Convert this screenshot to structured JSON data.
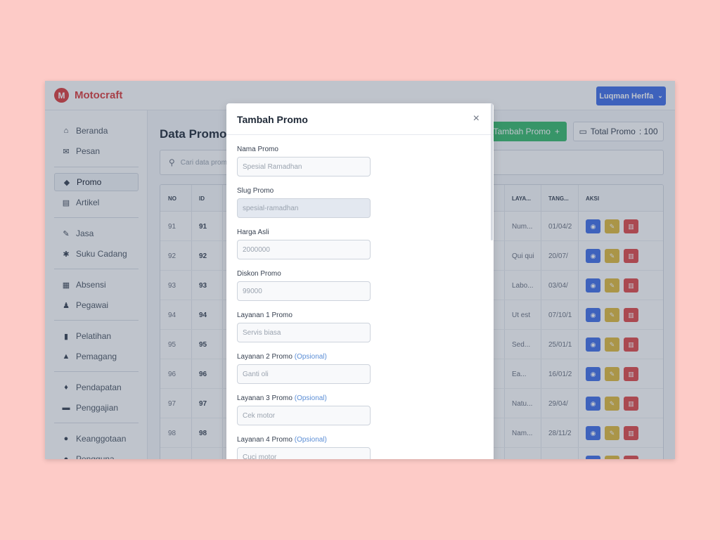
{
  "header": {
    "brand_logo": "M",
    "brand_name": "Motocraft",
    "user_name": "Luqman Herlfa",
    "chevron": "⌄",
    "colors": {
      "brand": "#dc3b3b",
      "user_button": "#3f6ee8"
    }
  },
  "sidebar": {
    "items": [
      {
        "label": "Beranda",
        "icon": "home-icon",
        "glyph": "⌂"
      },
      {
        "label": "Pesan",
        "icon": "envelope-icon",
        "glyph": "✉"
      },
      {
        "label": "Promo",
        "icon": "tags-icon",
        "glyph": "◆",
        "active": true
      },
      {
        "label": "Artikel",
        "icon": "newspaper-icon",
        "glyph": "▤"
      },
      {
        "label": "Jasa",
        "icon": "wrench-icon",
        "glyph": "✎"
      },
      {
        "label": "Suku Cadang",
        "icon": "gear-icon",
        "glyph": "✱"
      },
      {
        "label": "Absensi",
        "icon": "calendar-icon",
        "glyph": "▦"
      },
      {
        "label": "Pegawai",
        "icon": "user-tie-icon",
        "glyph": "♟"
      },
      {
        "label": "Pelatihan",
        "icon": "book-icon",
        "glyph": "▮"
      },
      {
        "label": "Pemagang",
        "icon": "graduation-cap-icon",
        "glyph": "▲"
      },
      {
        "label": "Pendapatan",
        "icon": "money-bag-icon",
        "glyph": "♦"
      },
      {
        "label": "Penggajian",
        "icon": "wallet-icon",
        "glyph": "▬"
      },
      {
        "label": "Keanggotaan",
        "icon": "user-icon",
        "glyph": "●"
      },
      {
        "label": "Pengguna",
        "icon": "users-icon",
        "glyph": "●"
      }
    ]
  },
  "main": {
    "title": "Data Promo",
    "add_button": "Tambah Promo",
    "add_glyph": "+",
    "total_label": "Total Promo",
    "total_value": ": 100",
    "folder_glyph": "▭",
    "search_placeholder": "Cari data promo",
    "search_glyph": "⚲",
    "table": {
      "columns": [
        "NO",
        "ID",
        "LAYA...",
        "TANG...",
        "AKSI"
      ],
      "rows": [
        {
          "no": "91",
          "id": "91",
          "layanan": "Num...",
          "tanggal": "01/04/2"
        },
        {
          "no": "92",
          "id": "92",
          "layanan": "Qui qui",
          "tanggal": "20/07/"
        },
        {
          "no": "93",
          "id": "93",
          "layanan": "Labo...",
          "tanggal": "03/04/"
        },
        {
          "no": "94",
          "id": "94",
          "layanan": "Ut est",
          "tanggal": "07/10/1"
        },
        {
          "no": "95",
          "id": "95",
          "layanan": "Sed...",
          "tanggal": "25/01/1"
        },
        {
          "no": "96",
          "id": "96",
          "layanan": "Ea...",
          "tanggal": "16/01/2"
        },
        {
          "no": "97",
          "id": "97",
          "layanan": "Natu...",
          "tanggal": "29/04/"
        },
        {
          "no": "98",
          "id": "98",
          "layanan": "Nam...",
          "tanggal": "28/11/2"
        },
        {
          "no": "",
          "id": "",
          "layanan": "",
          "tanggal": ""
        }
      ],
      "action_glyphs": {
        "view": "◉",
        "edit": "✎",
        "delete": "▥"
      }
    }
  },
  "modal": {
    "title": "Tambah Promo",
    "close": "×",
    "fields": [
      {
        "label": "Nama Promo",
        "optional": "",
        "placeholder": "Spesial Ramadhan",
        "disabled": false
      },
      {
        "label": "Slug Promo",
        "optional": "",
        "placeholder": "spesial-ramadhan",
        "disabled": true
      },
      {
        "label": "Harga Asli",
        "optional": "",
        "placeholder": "2000000",
        "disabled": false
      },
      {
        "label": "Diskon Promo",
        "optional": "",
        "placeholder": "99000",
        "disabled": false
      },
      {
        "label": "Layanan 1 Promo",
        "optional": "",
        "placeholder": "Servis biasa",
        "disabled": false
      },
      {
        "label": "Layanan 2 Promo",
        "optional": "(Opsional)",
        "placeholder": "Ganti oli",
        "disabled": false
      },
      {
        "label": "Layanan 3 Promo",
        "optional": "(Opsional)",
        "placeholder": "Cek motor",
        "disabled": false
      },
      {
        "label": "Layanan 4 Promo",
        "optional": "(Opsional)",
        "placeholder": "Cuci motor",
        "disabled": false
      }
    ]
  }
}
